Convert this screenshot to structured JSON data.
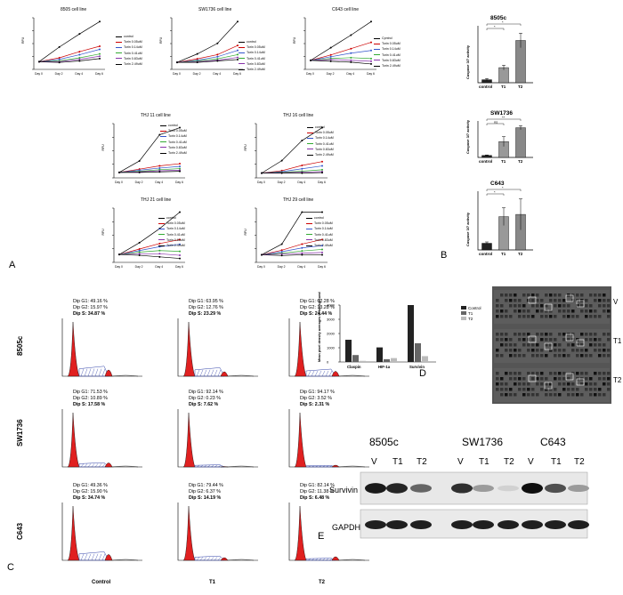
{
  "panel_labels": {
    "a": "A",
    "b": "B",
    "c": "C",
    "d": "D",
    "e": "E"
  },
  "growth_legend": [
    "control",
    "Torin 0.05uM",
    "Torin 0.14uM",
    "Torin 0.41uM",
    "Torin 0.83uM",
    "Torin 2.49uM"
  ],
  "growth_legend_alt_first": "Cpntrol",
  "growth_charts": [
    {
      "title": "8505 cell line",
      "ylabel": "RFU",
      "x": [
        "Day 0",
        "Day 2",
        "Day 4",
        "Day 6"
      ]
    },
    {
      "title": "SW1736 cell line",
      "ylabel": "RFU",
      "x": [
        "Day 0",
        "Day 2",
        "Day 4",
        "Day 6"
      ]
    },
    {
      "title": "C643 cell line",
      "ylabel": "RFU",
      "x": [
        "Day 0",
        "Day 2",
        "Day 4",
        "Day 6"
      ]
    },
    {
      "title": "THJ 11 cell line",
      "ylabel": "RFU",
      "x": [
        "Day 0",
        "Day 2",
        "Day 4",
        "Day 6"
      ]
    },
    {
      "title": "THJ 16 cell line",
      "ylabel": "RFU",
      "x": [
        "Day 0",
        "Day 2",
        "Day 4",
        "Day 6"
      ]
    },
    {
      "title": "THJ 21 cell line",
      "ylabel": "RFU",
      "x": [
        "Day 0",
        "Day 2",
        "Day 4",
        "Day 6"
      ]
    },
    {
      "title": "THJ 29 cell line",
      "ylabel": "RFU",
      "x": [
        "Day 0",
        "Day 2",
        "Day 4",
        "Day 6"
      ]
    }
  ],
  "chart_data": [
    {
      "type": "line",
      "title": "8505 cell line",
      "categories": [
        "Day 0",
        "Day 2",
        "Day 4",
        "Day 6"
      ],
      "series": [
        {
          "name": "control",
          "values": [
            1,
            2.9,
            4.6,
            6.2
          ]
        },
        {
          "name": "Torin 0.05uM",
          "values": [
            1,
            1.5,
            2.3,
            3.0
          ]
        },
        {
          "name": "Torin 0.14uM",
          "values": [
            1,
            1.3,
            1.9,
            2.6
          ]
        },
        {
          "name": "Torin 0.41uM",
          "values": [
            1,
            1.1,
            1.5,
            2.0
          ]
        },
        {
          "name": "Torin 0.83uM",
          "values": [
            1,
            1.0,
            1.3,
            1.7
          ]
        },
        {
          "name": "Torin 2.49uM",
          "values": [
            1,
            0.9,
            1.1,
            1.4
          ]
        }
      ]
    },
    {
      "type": "line",
      "title": "SW1736 cell line",
      "categories": [
        "Day 0",
        "Day 2",
        "Day 4",
        "Day 6"
      ],
      "series": [
        {
          "name": "control",
          "values": [
            1,
            2.2,
            3.7,
            6.8
          ]
        },
        {
          "name": "Torin 0.05uM",
          "values": [
            1,
            1.5,
            2.1,
            3.4
          ]
        },
        {
          "name": "Torin 0.14uM",
          "values": [
            1,
            1.3,
            1.8,
            2.7
          ]
        },
        {
          "name": "Torin 0.41uM",
          "values": [
            1,
            1.2,
            1.5,
            2.1
          ]
        },
        {
          "name": "Torin 0.83uM",
          "values": [
            1,
            1.1,
            1.3,
            1.7
          ]
        },
        {
          "name": "Torin 2.49uM",
          "values": [
            1,
            1.0,
            1.2,
            1.4
          ]
        }
      ]
    },
    {
      "type": "line",
      "title": "C643 cell line",
      "categories": [
        "Day 0",
        "Day 2",
        "Day 4",
        "Day 6"
      ],
      "series": [
        {
          "name": "control",
          "values": [
            1,
            2.4,
            3.8,
            5.3
          ]
        },
        {
          "name": "Torin 0.05uM",
          "values": [
            1,
            1.6,
            2.3,
            3.0
          ]
        },
        {
          "name": "Torin 0.14uM",
          "values": [
            1,
            1.4,
            1.8,
            2.1
          ]
        },
        {
          "name": "Torin 0.41uM",
          "values": [
            1,
            1.2,
            1.3,
            1.2
          ]
        },
        {
          "name": "Torin 0.83uM",
          "values": [
            1,
            1.1,
            1.0,
            0.9
          ]
        },
        {
          "name": "Torin 2.49uM",
          "values": [
            1,
            0.9,
            0.8,
            0.6
          ]
        }
      ]
    },
    {
      "type": "line",
      "title": "THJ 11 cell line",
      "categories": [
        "Day 0",
        "Day 2",
        "Day 4",
        "Day 6"
      ],
      "series": [
        {
          "name": "control",
          "values": [
            1,
            3.1,
            7.9,
            9.2
          ]
        },
        {
          "name": "Torin 0.05uM",
          "values": [
            1,
            1.6,
            2.2,
            2.6
          ]
        },
        {
          "name": "Torin 0.14uM",
          "values": [
            1,
            1.4,
            1.8,
            2.1
          ]
        },
        {
          "name": "Torin 0.41uM",
          "values": [
            1,
            1.2,
            1.5,
            1.7
          ]
        },
        {
          "name": "Torin 0.83uM",
          "values": [
            1,
            1.1,
            1.3,
            1.4
          ]
        },
        {
          "name": "Torin 2.49uM",
          "values": [
            1,
            1.0,
            1.1,
            1.2
          ]
        }
      ]
    },
    {
      "type": "line",
      "title": "THJ 16 cell line",
      "categories": [
        "Day 0",
        "Day 2",
        "Day 4",
        "Day 6"
      ],
      "series": [
        {
          "name": "control",
          "values": [
            1,
            3.6,
            7.8,
            10.5
          ]
        },
        {
          "name": "Torin 0.05uM",
          "values": [
            1,
            1.5,
            2.6,
            3.4
          ]
        },
        {
          "name": "Torin 0.14uM",
          "values": [
            1,
            1.3,
            1.9,
            2.5
          ]
        },
        {
          "name": "Torin 0.41uM",
          "values": [
            1,
            1.2,
            1.4,
            1.7
          ]
        },
        {
          "name": "Torin 0.83uM",
          "values": [
            1,
            1.1,
            1.2,
            1.3
          ]
        },
        {
          "name": "Torin 2.49uM",
          "values": [
            1,
            1.0,
            1.0,
            1.1
          ]
        }
      ]
    },
    {
      "type": "line",
      "title": "THJ 21 cell line",
      "categories": [
        "Day 0",
        "Day 2",
        "Day 4",
        "Day 6"
      ],
      "series": [
        {
          "name": "control",
          "values": [
            1,
            2.5,
            4.3,
            6.4
          ]
        },
        {
          "name": "Torin 0.05uM",
          "values": [
            1,
            1.7,
            2.4,
            2.9
          ]
        },
        {
          "name": "Torin 0.14uM",
          "values": [
            1,
            1.5,
            2.0,
            2.3
          ]
        },
        {
          "name": "Torin 0.41uM",
          "values": [
            1,
            1.3,
            1.5,
            1.4
          ]
        },
        {
          "name": "Torin 0.83uM",
          "values": [
            1,
            1.1,
            1.1,
            0.9
          ]
        },
        {
          "name": "Torin 2.49uM",
          "values": [
            1,
            0.9,
            0.7,
            0.5
          ]
        }
      ]
    },
    {
      "type": "line",
      "title": "THJ 29 cell line",
      "categories": [
        "Day 0",
        "Day 2",
        "Day 4",
        "Day 6"
      ],
      "series": [
        {
          "name": "control",
          "values": [
            1,
            2.4,
            6.6,
            6.6
          ]
        },
        {
          "name": "Torin 0.05uM",
          "values": [
            1,
            1.6,
            2.4,
            3.0
          ]
        },
        {
          "name": "Torin 0.14uM",
          "values": [
            1,
            1.4,
            1.9,
            2.2
          ]
        },
        {
          "name": "Torin 0.41uM",
          "values": [
            1,
            1.2,
            1.5,
            1.7
          ]
        },
        {
          "name": "Torin 0.83uM",
          "values": [
            1,
            1.1,
            1.2,
            1.3
          ]
        },
        {
          "name": "Torin 2.49uM",
          "values": [
            1,
            0.9,
            1.0,
            1.0
          ]
        }
      ]
    },
    {
      "type": "bar",
      "title": "8505c",
      "ylabel": "Caspase 3/7 activity",
      "categories": [
        "control",
        "T1",
        "T2"
      ],
      "values": [
        5,
        25,
        70
      ],
      "errors": [
        2,
        4,
        12
      ],
      "sig": [
        "*",
        "*"
      ]
    },
    {
      "type": "bar",
      "title": "SW1736",
      "ylabel": "Caspase 3/7 activity",
      "categories": [
        "control",
        "T1",
        "T2"
      ],
      "values": [
        2,
        16,
        30
      ],
      "errors": [
        0.5,
        5,
        2
      ],
      "sig": [
        "ns",
        "**"
      ]
    },
    {
      "type": "bar",
      "title": "C643",
      "ylabel": "Caspase 3/7 activity",
      "categories": [
        "control",
        "T1",
        "T2"
      ],
      "values": [
        1.5,
        7.5,
        8
      ],
      "errors": [
        0.3,
        2,
        3.5
      ],
      "sig": [
        "*",
        "*"
      ]
    },
    {
      "type": "bar",
      "title": "",
      "ylabel": "Mean pixel density averages to background",
      "categories": [
        "Claspin",
        "HIF-1a",
        "Survivin"
      ],
      "series": [
        {
          "name": "Control",
          "values": [
            1600,
            1050,
            4100
          ]
        },
        {
          "name": "T1",
          "values": [
            500,
            200,
            1350
          ]
        },
        {
          "name": "T2",
          "values": [
            80,
            280,
            420
          ]
        }
      ],
      "ylim": [
        0,
        4000
      ],
      "yticks": [
        "0",
        "1000",
        "2000",
        "3000",
        "4000"
      ]
    }
  ],
  "caspase": [
    {
      "title": "8505c",
      "ylabel": "Caspase 3/7 activity",
      "cats": [
        "control",
        "T1",
        "T2"
      ],
      "sig": [
        "*",
        "*"
      ]
    },
    {
      "title": "SW1736",
      "ylabel": "Caspase 3/7 activity",
      "cats": [
        "control",
        "T1",
        "T2"
      ],
      "sig": [
        "ns",
        "**"
      ]
    },
    {
      "title": "C643",
      "ylabel": "Caspase 3/7 activity",
      "cats": [
        "control",
        "T1",
        "T2"
      ],
      "sig": [
        "*",
        "*"
      ]
    }
  ],
  "cell_cycle": {
    "rows": [
      "8505c",
      "SW1736",
      "C643"
    ],
    "cols": [
      "Control",
      "T1",
      "T2"
    ],
    "stats": [
      [
        [
          "Dip G1: 49.16 %",
          "Dip G2: 15.97 %",
          "Dip S: 34.87 %"
        ],
        [
          "Dip G1: 63.95 %",
          "Dip G2: 12.76 %",
          "Dip S: 23.29 %"
        ],
        [
          "Dip G1: 62.28 %",
          "Dip G2: 13.28 %",
          "Dip S: 24.44 %"
        ]
      ],
      [
        [
          "Dip G1: 71.53 %",
          "Dip G2: 10.89 %",
          "Dip S: 17.58 %"
        ],
        [
          "Dip G1: 92.14 %",
          "Dip G2: 0.23 %",
          "Dip S: 7.62 %"
        ],
        [
          "Dip G1: 94.17 %",
          "Dip G2: 3.52 %",
          "Dip S: 2.31 %"
        ]
      ],
      [
        [
          "Dip G1: 49.36 %",
          "Dip G2: 15.90 %",
          "Dip S: 34.74 %"
        ],
        [
          "Dip G1: 79.44 %",
          "Dip G2: 6.37 %",
          "Dip S: 14.19 %"
        ],
        [
          "Dip G1: 82.14 %",
          "Dip G2: 11.38 %",
          "Dip S: 6.48 %"
        ]
      ]
    ]
  },
  "density": {
    "legend": [
      "Control",
      "T1",
      "T2"
    ],
    "ylabel": "Mean pixel density averages to background",
    "cats": [
      "Claspin",
      "HIF-1a",
      "Survivin"
    ],
    "yticks": [
      "0",
      "1000",
      "2000",
      "3000",
      "4000"
    ]
  },
  "array_labels": [
    "V",
    "T1",
    "T2"
  ],
  "western": {
    "cell_lines": [
      "8505c",
      "SW1736",
      "C643"
    ],
    "lanes": [
      "V",
      "T1",
      "T2",
      "V",
      "T1",
      "T2",
      "V",
      "T1",
      "T2"
    ],
    "proteins": [
      "Survivin",
      "GAPDH"
    ],
    "survivin_intensity": [
      0.95,
      0.9,
      0.6,
      0.85,
      0.35,
      0.1,
      1.0,
      0.7,
      0.35
    ],
    "gapdh_intensity": [
      0.95,
      0.95,
      0.95,
      0.95,
      0.95,
      0.95,
      0.95,
      0.95,
      0.95
    ]
  },
  "colors": {
    "control": "#000000",
    "t005": "#cc0000",
    "t014": "#3355cc",
    "t041": "#33aa33",
    "t083": "#8833aa",
    "t249": "#000000",
    "bar_dark": "#222222",
    "bar_mid": "#666666",
    "bar_light": "#bbbbbb",
    "histo": "#e02020",
    "histo_s": "#3344aa"
  }
}
